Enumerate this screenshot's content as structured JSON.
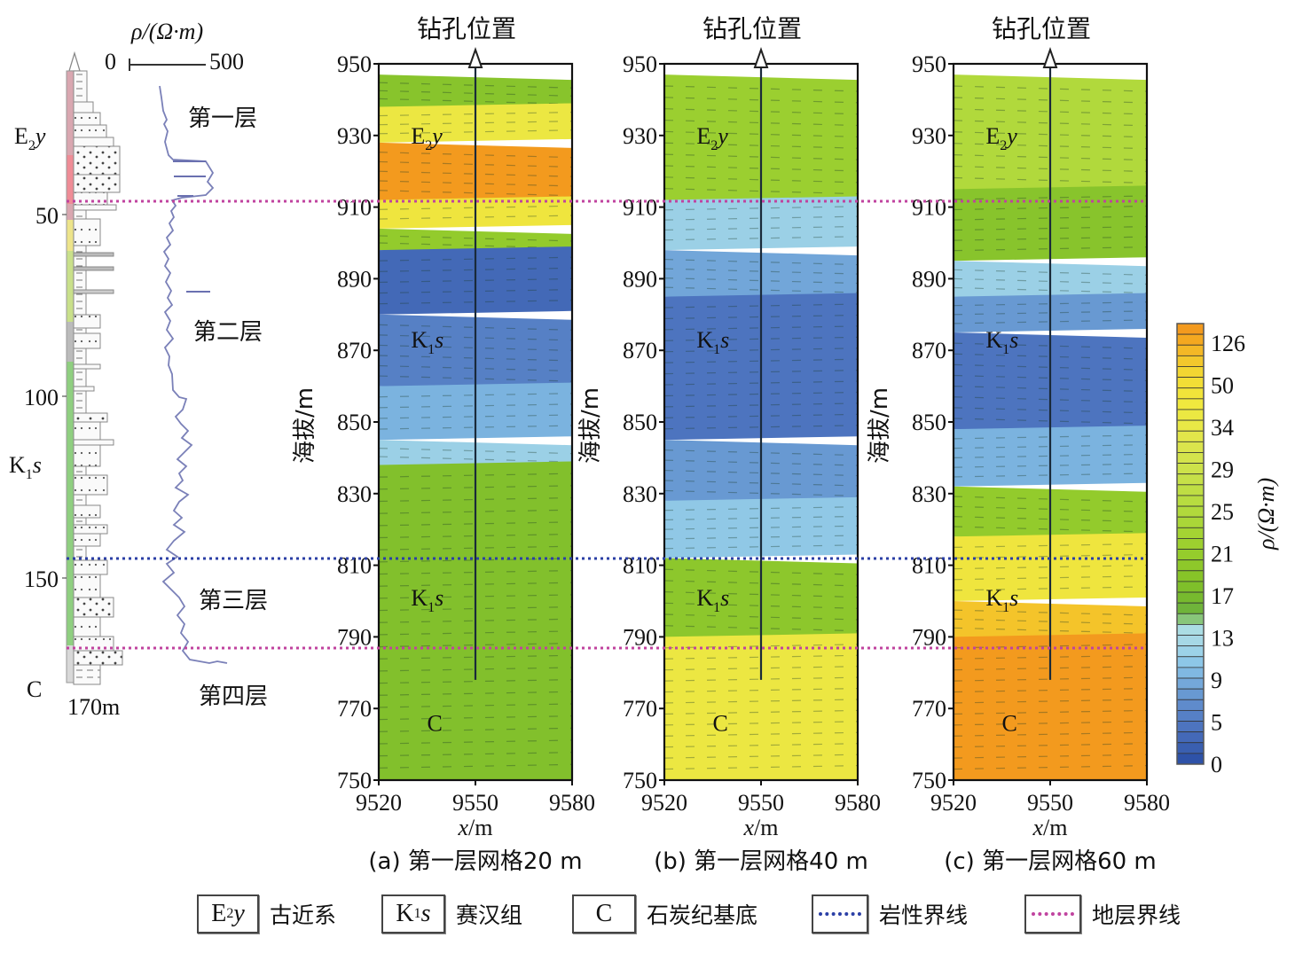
{
  "borehole_column": {
    "resistivity_axis_label": "ρ/(Ω·m)",
    "resistivity_min": "0",
    "resistivity_max": "500",
    "depth_ticks": [
      "50",
      "100",
      "150"
    ],
    "depth_end_label": "170m",
    "formation_labels": [
      {
        "main": "E",
        "sub": "2",
        "italic": "y"
      },
      {
        "main": "K",
        "sub": "1",
        "italic": "s"
      },
      {
        "main": "C",
        "sub": "",
        "italic": ""
      }
    ],
    "layer_labels": [
      "第一层",
      "第二层",
      "第三层",
      "第四层"
    ]
  },
  "borehole_marker_label": "钻孔位置",
  "y_axis_label": "海拔/m",
  "x_axis_label_italic": "x",
  "x_axis_label_unit": "/m",
  "colorbar": {
    "label": "ρ/(Ω·m)",
    "tick_labels": [
      "126",
      "50",
      "34",
      "29",
      "25",
      "21",
      "17",
      "13",
      "9",
      "5",
      "0"
    ],
    "colors": [
      "#2e52a8",
      "#3a5fb0",
      "#4469b8",
      "#4d74bf",
      "#5680c6",
      "#5f8bcc",
      "#6899d2",
      "#74a8da",
      "#80b8e2",
      "#8dc7e8",
      "#9cd2e8",
      "#a6d8e6",
      "#abdde4",
      "#88c67a",
      "#6fb43a",
      "#77ba2e",
      "#7fbf2a",
      "#87c428",
      "#8ec82a",
      "#95cc2c",
      "#9dd02f",
      "#a4d333",
      "#aad638",
      "#b1d93c",
      "#b8dc40",
      "#bfde44",
      "#c6e048",
      "#cde24a",
      "#d4e34c",
      "#dbe44c",
      "#e2e64a",
      "#e8e846",
      "#ece842",
      "#f0e83e",
      "#f1e43a",
      "#f2de36",
      "#f2d632",
      "#f3c82c",
      "#f4b826",
      "#f4a820",
      "#f39a1e"
    ]
  },
  "legend": [
    {
      "box_main": "E",
      "box_sub": "2",
      "box_italic": "y",
      "label": "古近系"
    },
    {
      "box_main": "K",
      "box_sub": "1",
      "box_italic": "s",
      "label": "赛汉组"
    },
    {
      "box_main": "C",
      "box_sub": "",
      "box_italic": "",
      "label": "石炭纪基底"
    },
    {
      "line_color": "#2b3fa6",
      "label": "岩性界线"
    },
    {
      "line_color": "#c0439f",
      "label": "地层界线"
    }
  ],
  "colors": {
    "lithology_boundary": "#2b3fa6",
    "stratum_boundary": "#c0439f",
    "log_curve": "#7a80b8"
  },
  "chart_data": [
    {
      "type": "heatmap",
      "title": "(a) 第一层网格20 m",
      "xlabel": "x/m",
      "ylabel": "海拔/m",
      "xlim": [
        9520,
        9580
      ],
      "ylim": [
        750,
        950
      ],
      "x_ticks": [
        "9520",
        "9550",
        "9580"
      ],
      "y_ticks": [
        "950",
        "930",
        "910",
        "890",
        "870",
        "850",
        "830",
        "810",
        "790",
        "770",
        "750"
      ],
      "borehole_x": 9550,
      "borehole_bottom": 778,
      "formation_annotations": [
        {
          "label": "E2y",
          "x": 9530,
          "y": 930
        },
        {
          "label": "K1s",
          "x": 9530,
          "y": 873
        },
        {
          "label": "K1s",
          "x": 9530,
          "y": 801
        },
        {
          "label": "C",
          "x": 9535,
          "y": 766
        }
      ],
      "resistivity_bands_ohm_m": [
        {
          "from": 950,
          "to": 938,
          "value": 19
        },
        {
          "from": 938,
          "to": 928,
          "value": 40
        },
        {
          "from": 928,
          "to": 912,
          "value": 126
        },
        {
          "from": 912,
          "to": 904,
          "value": 45
        },
        {
          "from": 904,
          "to": 898,
          "value": 21
        },
        {
          "from": 898,
          "to": 880,
          "value": 2
        },
        {
          "from": 880,
          "to": 860,
          "value": 4
        },
        {
          "from": 860,
          "to": 845,
          "value": 8
        },
        {
          "from": 845,
          "to": 838,
          "value": 11
        },
        {
          "from": 838,
          "to": 750,
          "value": 18
        }
      ]
    },
    {
      "type": "heatmap",
      "title": "(b) 第一层网格40 m",
      "xlabel": "x/m",
      "ylabel": "海拔/m",
      "xlim": [
        9520,
        9580
      ],
      "ylim": [
        750,
        950
      ],
      "x_ticks": [
        "9520",
        "9550",
        "9580"
      ],
      "y_ticks": [
        "950",
        "930",
        "910",
        "890",
        "870",
        "850",
        "830",
        "810",
        "790",
        "770",
        "750"
      ],
      "borehole_x": 9550,
      "borehole_bottom": 778,
      "formation_annotations": [
        {
          "label": "E2y",
          "x": 9530,
          "y": 930
        },
        {
          "label": "K1s",
          "x": 9530,
          "y": 873
        },
        {
          "label": "K1s",
          "x": 9530,
          "y": 801
        },
        {
          "label": "C",
          "x": 9535,
          "y": 766
        }
      ],
      "resistivity_bands_ohm_m": [
        {
          "from": 950,
          "to": 912,
          "value": 22
        },
        {
          "from": 912,
          "to": 898,
          "value": 11
        },
        {
          "from": 898,
          "to": 885,
          "value": 7
        },
        {
          "from": 885,
          "to": 845,
          "value": 3
        },
        {
          "from": 845,
          "to": 828,
          "value": 6
        },
        {
          "from": 828,
          "to": 812,
          "value": 10
        },
        {
          "from": 812,
          "to": 790,
          "value": 20
        },
        {
          "from": 790,
          "to": 750,
          "value": 40
        }
      ]
    },
    {
      "type": "heatmap",
      "title": "(c) 第一层网格60 m",
      "xlabel": "x/m",
      "ylabel": "海拔/m",
      "xlim": [
        9520,
        9580
      ],
      "ylim": [
        750,
        950
      ],
      "x_ticks": [
        "9520",
        "9550",
        "9580"
      ],
      "y_ticks": [
        "950",
        "930",
        "910",
        "890",
        "870",
        "850",
        "830",
        "810",
        "790",
        "770",
        "750"
      ],
      "borehole_x": 9550,
      "borehole_bottom": 778,
      "formation_annotations": [
        {
          "label": "E2y",
          "x": 9530,
          "y": 930
        },
        {
          "label": "K1s",
          "x": 9530,
          "y": 873
        },
        {
          "label": "K1s",
          "x": 9530,
          "y": 801
        },
        {
          "label": "C",
          "x": 9535,
          "y": 766
        }
      ],
      "resistivity_bands_ohm_m": [
        {
          "from": 950,
          "to": 915,
          "value": 25
        },
        {
          "from": 915,
          "to": 895,
          "value": 19
        },
        {
          "from": 895,
          "to": 885,
          "value": 11
        },
        {
          "from": 885,
          "to": 875,
          "value": 6
        },
        {
          "from": 875,
          "to": 848,
          "value": 3
        },
        {
          "from": 848,
          "to": 832,
          "value": 8
        },
        {
          "from": 832,
          "to": 818,
          "value": 21
        },
        {
          "from": 818,
          "to": 800,
          "value": 45
        },
        {
          "from": 800,
          "to": 790,
          "value": 90
        },
        {
          "from": 790,
          "to": 750,
          "value": 126
        }
      ]
    }
  ]
}
